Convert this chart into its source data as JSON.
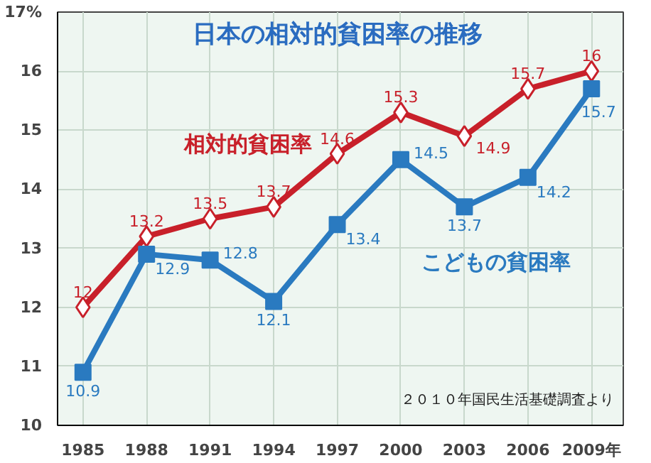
{
  "chart_data": {
    "type": "line",
    "title": "日本の相対的貧困率の推移",
    "categories": [
      "1985",
      "1988",
      "1991",
      "1994",
      "1997",
      "2000",
      "2003",
      "2006",
      "2009年"
    ],
    "series": [
      {
        "name": "相対的貧困率",
        "color": "#c8202a",
        "marker": "diamond",
        "values": [
          12,
          13.2,
          13.5,
          13.7,
          14.6,
          15.3,
          14.9,
          15.7,
          16
        ]
      },
      {
        "name": "こどもの貧困率",
        "color": "#2a7ac0",
        "marker": "square",
        "values": [
          10.9,
          12.9,
          12.8,
          12.1,
          13.4,
          14.5,
          13.7,
          14.2,
          15.7
        ]
      }
    ],
    "ylim": [
      10,
      17
    ],
    "yticks": [
      10,
      11,
      12,
      13,
      14,
      15,
      16,
      {
        "value": 17,
        "label": "17%"
      }
    ],
    "grid": true,
    "data_labels": true,
    "annotations": [
      "２０１０年国民生活基礎調査より"
    ]
  }
}
